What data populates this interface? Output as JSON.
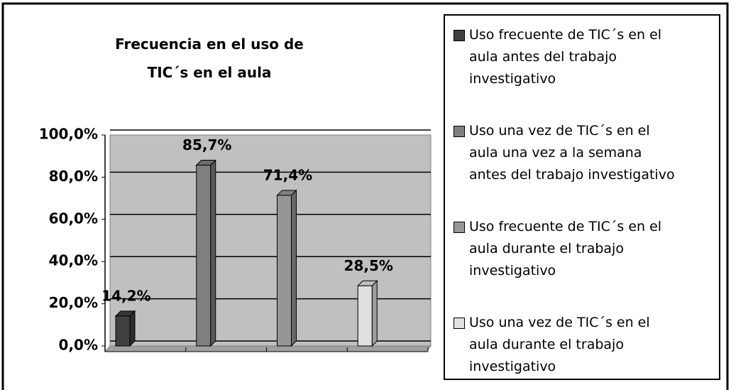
{
  "chart_data": {
    "type": "bar",
    "title": "Frecuencia en el uso de TIC´s en el aula",
    "categories": [
      null,
      null,
      null,
      null
    ],
    "series": [
      {
        "name": "Uso frecuente de TIC´s en el aula antes del trabajo investigativo",
        "color": "#404040",
        "values": [
          14.2,
          null,
          null,
          null
        ],
        "value_labels": [
          "14,2%",
          null,
          null,
          null
        ]
      },
      {
        "name": "Uso una vez de TIC´s en el aula una vez a la semana antes del trabajo investigativo",
        "color": "#7f7f7f",
        "values": [
          null,
          85.7,
          null,
          null
        ],
        "value_labels": [
          null,
          "85,7%",
          null,
          null
        ]
      },
      {
        "name": "Uso frecuente de TIC´s en el aula durante el trabajo investigativo",
        "color": "#969696",
        "values": [
          null,
          null,
          71.4,
          null
        ],
        "value_labels": [
          null,
          null,
          "71,4%",
          null
        ]
      },
      {
        "name": "Uso una vez de TIC´s en el aula durante el trabajo investigativo",
        "color": "#e0e0e0",
        "values": [
          null,
          null,
          null,
          28.5
        ],
        "value_labels": [
          null,
          null,
          null,
          "28,5%"
        ]
      }
    ],
    "ylim": [
      0,
      100
    ],
    "yticks": [
      {
        "value": 0,
        "label": "0,0%"
      },
      {
        "value": 20,
        "label": "20,0%"
      },
      {
        "value": 40,
        "label": "40,0%"
      },
      {
        "value": 60,
        "label": "60,0%"
      },
      {
        "value": 80,
        "label": "80,0%"
      },
      {
        "value": 100,
        "label": "100,0%"
      }
    ],
    "grid": true,
    "legend": "right"
  }
}
